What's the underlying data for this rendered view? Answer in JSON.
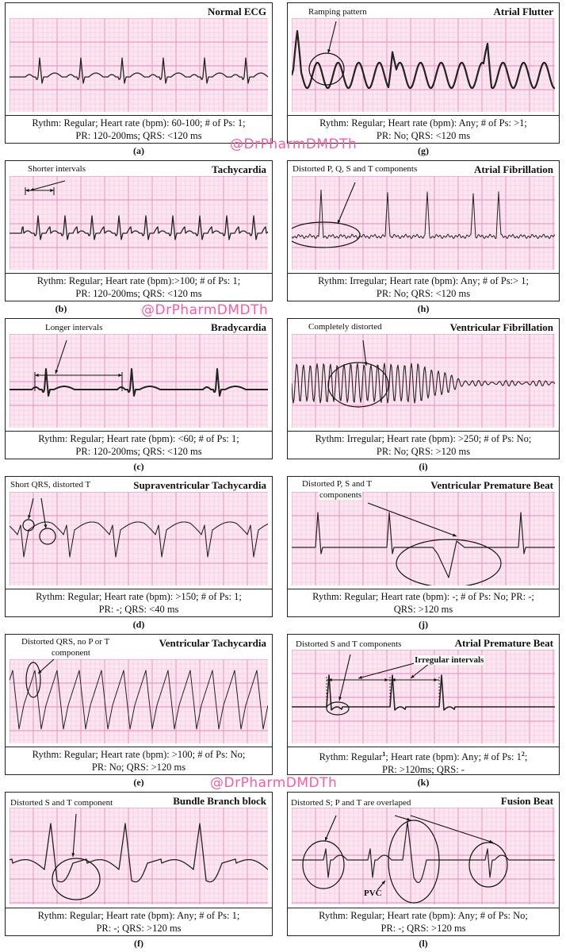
{
  "panels": {
    "a": {
      "title": "Normal ECG",
      "line1": "Rythm: Regular; Heart rate (bpm): 60-100; # of Ps: 1;",
      "line2": "PR: 120-200ms; QRS: <120 ms",
      "letter": "(a)"
    },
    "b": {
      "title": "Tachycardia",
      "annotation": "Shorter intervals",
      "line1": "Rythm: Regular; Heart rate (bpm):>100; # of Ps: 1;",
      "line2": "PR: 120-200ms; QRS: <120 ms",
      "letter": "(b)"
    },
    "c": {
      "title": "Bradycardia",
      "annotation": "Longer intervals",
      "line1": "Rythm: Regular; Heart rate (bpm): <60; # of Ps: 1;",
      "line2": "PR: 120-200ms; QRS: <120 ms",
      "letter": "(c)"
    },
    "d": {
      "title": "Supraventricular Tachycardia",
      "annotation": "Short QRS, distorted T",
      "line1": "Rythm: Regular; Heart rate (bpm): >150; # of Ps: 1;",
      "line2": "PR: -; QRS: <40 ms",
      "letter": "(d)"
    },
    "e": {
      "title": "Ventricular Tachycardia",
      "annotation_line1": "Distorted QRS, no P or T",
      "annotation_line2": "component",
      "line1": "Rythm: Regular; Heart rate (bpm): >100; # of Ps: No;",
      "line2": "PR: No; QRS: >120 ms",
      "letter": "(e)"
    },
    "f": {
      "title": "Bundle Branch block",
      "annotation": "Distorted S and T component",
      "line1": "Rythm: Regular; Heart rate (bpm): Any; # of Ps: 1;",
      "line2": "PR: -; QRS: >120 ms",
      "letter": "(f)"
    },
    "g": {
      "title": "Atrial Flutter",
      "annotation": "Ramping pattern",
      "line1": "Rythm: Regular; Heart rate (bpm): Any; # of Ps: >1;",
      "line2": "PR: No; QRS: <120 ms",
      "letter": "(g)"
    },
    "h": {
      "title": "Atrial Fibrillation",
      "annotation": "Distorted P, Q, S and T components",
      "line1": "Rythm: Irregular; Heart rate (bpm): Any; # of Ps:> 1;",
      "line2": "PR: No; QRS: <120 ms",
      "letter": "(h)"
    },
    "i": {
      "title": "Ventricular Fibrillation",
      "annotation": "Completely distorted",
      "line1": "Rythm: Irregular; Heart rate (bpm): >250; # of Ps: No;",
      "line2": "PR: No; QRS: >120 ms",
      "letter": "(i)"
    },
    "j": {
      "title": "Ventricular Premature Beat",
      "annotation_line1": "Distorted P, S and T",
      "annotation_line2": "components",
      "line1": "Rythm: Regular; Heart rate (bpm): -; # of Ps: No; PR: -;",
      "line2": "QRS: >120 ms",
      "letter": "(j)"
    },
    "k": {
      "title": "Atrial Premature Beat",
      "annotation": "Distorted S and T components",
      "annotation2": "Irregular intervals",
      "line1_pre": "Rythm: Regular",
      "sup1": "1",
      "line1_mid": "; Heart rate (bpm): Any; # of Ps: 1",
      "sup2": "2",
      "line1_post": ";",
      "line2": "PR: >120ms; QRS: -",
      "letter": "(k)"
    },
    "l": {
      "title": "Fusion Beat",
      "annotation": "Distorted S; P and T are overlaped",
      "annotation2": "PVC",
      "line1": "Rythm: Regular; Heart rate (bpm): Any; # of Ps: No;",
      "line2": "PR: -; QRS: >120 ms",
      "letter": "(l)"
    }
  },
  "watermarks": [
    "@DrPharmDMDTh",
    "@DrPharmDMDTh",
    "@DrPharmDMDTh"
  ],
  "colors": {
    "grid_minor": "#f6bfdc",
    "grid_major": "#ec84b9",
    "paper": "#fce7f1",
    "trace": "#222222",
    "watermark": "#ff5aa0"
  }
}
